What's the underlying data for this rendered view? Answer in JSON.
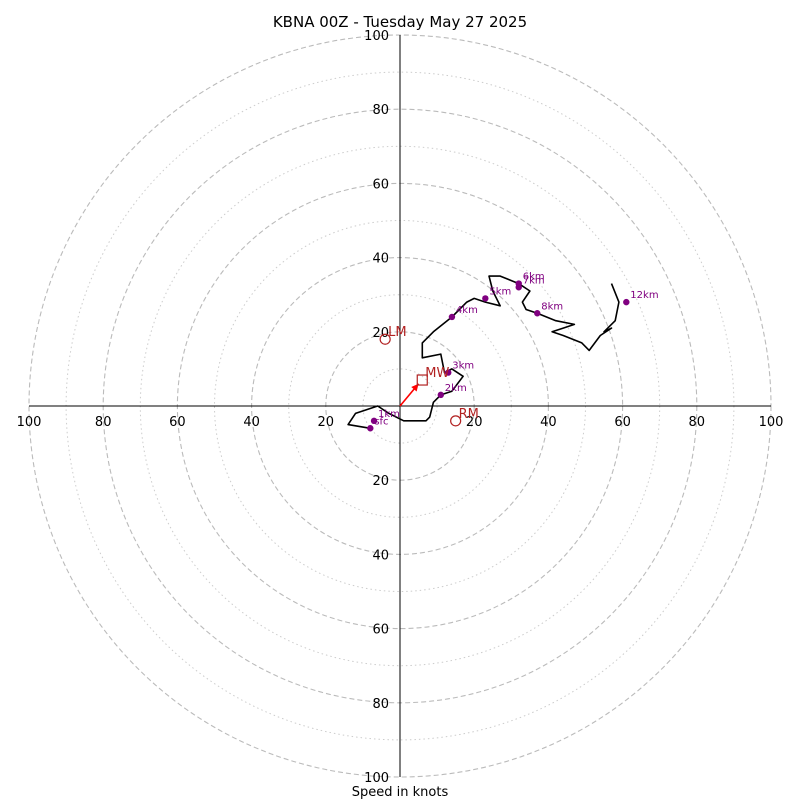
{
  "chart_data": {
    "type": "line",
    "title": "KBNA 00Z - Tuesday May 27 2025",
    "xlabel": "Speed in knots",
    "ylabel": "",
    "xlim": [
      -100,
      100
    ],
    "ylim": [
      -100,
      100
    ],
    "rings": {
      "major": [
        20,
        40,
        60,
        80,
        100
      ],
      "minor": [
        10,
        30,
        50,
        70,
        90
      ]
    },
    "axis_tick_labels": {
      "left": [
        "100",
        "80",
        "60",
        "40",
        "20"
      ],
      "right": [
        "20",
        "40",
        "60",
        "80",
        "100"
      ],
      "top": [
        "100",
        "80",
        "60",
        "40",
        "20"
      ],
      "bottom": [
        "20",
        "40",
        "60",
        "80",
        "100"
      ]
    },
    "hodograph": [
      [
        -8,
        -6
      ],
      [
        -14,
        -5
      ],
      [
        -12,
        -2
      ],
      [
        -6,
        0
      ],
      [
        -3,
        -2
      ],
      [
        1,
        -4
      ],
      [
        7,
        -4
      ],
      [
        8,
        -3
      ],
      [
        9,
        1
      ],
      [
        11,
        3
      ],
      [
        14,
        4
      ],
      [
        17,
        8
      ],
      [
        14,
        10
      ],
      [
        12,
        9
      ],
      [
        11,
        14
      ],
      [
        6,
        13
      ],
      [
        6,
        17
      ],
      [
        9,
        20
      ],
      [
        14,
        24
      ],
      [
        18,
        28
      ],
      [
        20,
        29
      ],
      [
        23,
        28
      ],
      [
        27,
        27
      ],
      [
        25,
        31
      ],
      [
        24,
        35
      ],
      [
        27,
        35
      ],
      [
        32,
        33
      ],
      [
        35,
        31
      ],
      [
        33,
        28
      ],
      [
        34,
        26
      ],
      [
        37,
        25
      ],
      [
        42,
        23
      ],
      [
        47,
        22
      ],
      [
        44,
        21
      ],
      [
        41,
        20
      ],
      [
        44,
        19
      ],
      [
        49,
        17
      ],
      [
        51,
        15
      ],
      [
        54,
        19
      ],
      [
        57,
        21
      ],
      [
        55,
        20
      ],
      [
        58,
        23
      ],
      [
        59,
        28
      ],
      [
        57,
        33
      ]
    ],
    "height_markers": [
      {
        "label": "sfc",
        "x": -8,
        "y": -6
      },
      {
        "label": "1km",
        "x": -7,
        "y": -4
      },
      {
        "label": "2km",
        "x": 11,
        "y": 3
      },
      {
        "label": "3km",
        "x": 13,
        "y": 9
      },
      {
        "label": "4km",
        "x": 14,
        "y": 24
      },
      {
        "label": "5km",
        "x": 23,
        "y": 29
      },
      {
        "label": "6km",
        "x": 32,
        "y": 33
      },
      {
        "label": "7km",
        "x": 32,
        "y": 32
      },
      {
        "label": "8km",
        "x": 37,
        "y": 25
      },
      {
        "label": "12km",
        "x": 61,
        "y": 28
      }
    ],
    "motion_markers": [
      {
        "label": "MW",
        "x": 6,
        "y": 7,
        "shape": "square"
      },
      {
        "label": "LM",
        "x": -4,
        "y": 18,
        "shape": "circle"
      },
      {
        "label": "RM",
        "x": 15,
        "y": -4,
        "shape": "circle"
      }
    ],
    "arrow": {
      "from": [
        0,
        0
      ],
      "to": [
        5,
        6
      ]
    },
    "colors": {
      "hodograph": "#000000",
      "height_markers": "#800080",
      "motion_markers": "#b22222",
      "arrow": "#ff0000",
      "rings": "#bbbbbb"
    }
  }
}
